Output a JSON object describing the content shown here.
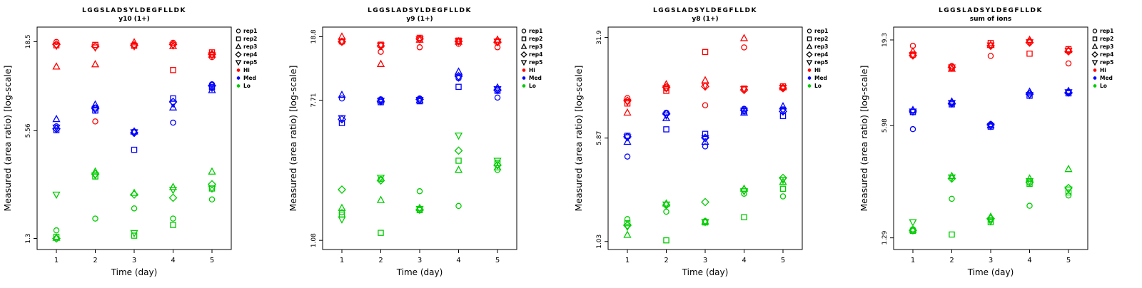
{
  "figure": {
    "peptide": "LGGSLADSYLDEGFLLDK"
  },
  "legend": {
    "reps": [
      {
        "label": "rep1",
        "marker": "circle"
      },
      {
        "label": "rep2",
        "marker": "square"
      },
      {
        "label": "rep3",
        "marker": "triangle-up"
      },
      {
        "label": "rep4",
        "marker": "diamond"
      },
      {
        "label": "rep5",
        "marker": "triangle-down"
      }
    ],
    "levels": [
      {
        "label": "Hi",
        "color": "#FF0000"
      },
      {
        "label": "Med",
        "color": "#0000FF"
      },
      {
        "label": "Lo",
        "color": "#00CC00"
      }
    ]
  },
  "chart_data": [
    {
      "type": "scatter",
      "title": "LGGSLADSYLDEGFLLDK",
      "subtitle": "y10 (1+)",
      "xlabel": "Time (day)",
      "ylabel": "Measured (area ratio) [log-scale]",
      "x_ticks": [
        1,
        2,
        3,
        4,
        5
      ],
      "y_ticks": [
        1.3,
        5.56,
        18.5
      ],
      "y_scale": "log",
      "ylim": [
        1.12,
        22.5
      ],
      "series": [
        {
          "name": "Hi",
          "color": "#FF0000",
          "reps": [
            {
              "marker": "circle",
              "values": [
                18.4,
                6.3,
                17.7,
                18.2,
                15.0
              ]
            },
            {
              "marker": "square",
              "values": [
                17.6,
                17.7,
                17.5,
                12.6,
                16.0
              ]
            },
            {
              "marker": "triangle-up",
              "values": [
                13.2,
                13.6,
                18.3,
                17.4,
                15.5
              ]
            },
            {
              "marker": "diamond",
              "values": [
                17.8,
                17.3,
                17.6,
                17.8,
                15.6
              ]
            },
            {
              "marker": "triangle-down",
              "values": [
                17.5,
                17.1,
                17.4,
                17.6,
                15.4
              ]
            }
          ]
        },
        {
          "name": "Med",
          "color": "#0000FF",
          "reps": [
            {
              "marker": "circle",
              "values": [
                5.9,
                7.6,
                5.5,
                6.2,
                10.4
              ]
            },
            {
              "marker": "square",
              "values": [
                5.6,
                7.3,
                4.3,
                8.6,
                10.0
              ]
            },
            {
              "marker": "triangle-up",
              "values": [
                6.5,
                7.9,
                5.5,
                7.6,
                9.6
              ]
            },
            {
              "marker": "diamond",
              "values": [
                5.7,
                7.5,
                5.4,
                8.2,
                10.2
              ]
            },
            {
              "marker": "triangle-down",
              "values": [
                5.8,
                7.4,
                5.45,
                8.0,
                9.9
              ]
            }
          ]
        },
        {
          "name": "Lo",
          "color": "#00CC00",
          "reps": [
            {
              "marker": "circle",
              "values": [
                1.45,
                1.7,
                1.95,
                1.7,
                2.2
              ]
            },
            {
              "marker": "square",
              "values": [
                1.33,
                3.0,
                1.35,
                1.56,
                2.55
              ]
            },
            {
              "marker": "triangle-up",
              "values": [
                1.31,
                3.2,
                2.4,
                2.6,
                3.2
              ]
            },
            {
              "marker": "diamond",
              "values": [
                1.3,
                3.1,
                2.35,
                2.25,
                2.7
              ]
            },
            {
              "marker": "triangle-down",
              "values": [
                2.35,
                3.05,
                1.4,
                2.5,
                2.55
              ]
            }
          ]
        }
      ]
    },
    {
      "type": "scatter",
      "title": "LGGSLADSYLDEGFLLDK",
      "subtitle": "y9 (1+)",
      "xlabel": "Time (day)",
      "ylabel": "Measured (area ratio) [log-scale]",
      "x_ticks": [
        1,
        2,
        3,
        4,
        5
      ],
      "y_ticks": [
        1.08,
        7.71,
        18.8
      ],
      "y_scale": "log",
      "ylim": [
        0.95,
        21.5
      ],
      "series": [
        {
          "name": "Hi",
          "color": "#FF0000",
          "reps": [
            {
              "marker": "circle",
              "values": [
                17.4,
                15.2,
                16.2,
                17.0,
                16.2
              ]
            },
            {
              "marker": "square",
              "values": [
                17.6,
                16.8,
                18.5,
                17.8,
                17.6
              ]
            },
            {
              "marker": "triangle-up",
              "values": [
                18.8,
                12.8,
                18.0,
                17.5,
                18.0
              ]
            },
            {
              "marker": "diamond",
              "values": [
                17.5,
                16.5,
                18.2,
                17.6,
                17.4
              ]
            },
            {
              "marker": "triangle-down",
              "values": [
                17.55,
                16.6,
                18.1,
                17.65,
                17.5
              ]
            }
          ]
        },
        {
          "name": "Med",
          "color": "#0000FF",
          "reps": [
            {
              "marker": "circle",
              "values": [
                7.9,
                7.8,
                7.9,
                10.5,
                8.0
              ]
            },
            {
              "marker": "square",
              "values": [
                5.6,
                7.5,
                7.6,
                9.3,
                8.8
              ]
            },
            {
              "marker": "triangle-up",
              "values": [
                8.3,
                7.7,
                7.7,
                11.5,
                9.2
              ]
            },
            {
              "marker": "diamond",
              "values": [
                5.9,
                7.6,
                7.8,
                10.8,
                8.9
              ]
            },
            {
              "marker": "triangle-down",
              "values": [
                6.0,
                7.65,
                7.75,
                10.6,
                9.0
              ]
            }
          ]
        },
        {
          "name": "Lo",
          "color": "#00CC00",
          "reps": [
            {
              "marker": "circle",
              "values": [
                1.6,
                2.55,
                2.15,
                1.75,
                2.9
              ]
            },
            {
              "marker": "square",
              "values": [
                1.55,
                1.2,
                1.65,
                3.3,
                3.2
              ]
            },
            {
              "marker": "triangle-up",
              "values": [
                1.7,
                1.9,
                1.7,
                2.9,
                3.0
              ]
            },
            {
              "marker": "diamond",
              "values": [
                2.2,
                2.5,
                1.66,
                3.8,
                3.1
              ]
            },
            {
              "marker": "triangle-down",
              "values": [
                1.45,
                2.6,
                1.68,
                4.7,
                3.3
              ]
            }
          ]
        }
      ]
    },
    {
      "type": "scatter",
      "title": "LGGSLADSYLDEGFLLDK",
      "subtitle": "y8 (1+)",
      "xlabel": "Time (day)",
      "ylabel": "Measured (area ratio) [log-scale]",
      "x_ticks": [
        1,
        2,
        3,
        4,
        5
      ],
      "y_ticks": [
        1.03,
        5.87,
        31.9
      ],
      "y_scale": "log",
      "ylim": [
        0.9,
        38.0
      ],
      "series": [
        {
          "name": "Hi",
          "color": "#FF0000",
          "reps": [
            {
              "marker": "circle",
              "values": [
                11.5,
                13.5,
                10.2,
                27.0,
                13.5
              ]
            },
            {
              "marker": "square",
              "values": [
                10.5,
                13.0,
                25.0,
                13.5,
                14.0
              ]
            },
            {
              "marker": "triangle-up",
              "values": [
                9.0,
                14.5,
                15.5,
                31.5,
                13.8
              ]
            },
            {
              "marker": "diamond",
              "values": [
                11.0,
                13.8,
                14.0,
                13.2,
                13.6
              ]
            },
            {
              "marker": "triangle-down",
              "values": [
                10.8,
                13.6,
                14.2,
                13.4,
                13.7
              ]
            }
          ]
        },
        {
          "name": "Med",
          "color": "#0000FF",
          "reps": [
            {
              "marker": "circle",
              "values": [
                4.3,
                9.0,
                5.1,
                9.6,
                9.5
              ]
            },
            {
              "marker": "square",
              "values": [
                6.1,
                6.8,
                6.3,
                9.2,
                8.5
              ]
            },
            {
              "marker": "triangle-up",
              "values": [
                5.5,
                8.2,
                5.5,
                9.0,
                10.0
              ]
            },
            {
              "marker": "diamond",
              "values": [
                6.0,
                8.8,
                5.9,
                9.4,
                9.2
              ]
            },
            {
              "marker": "triangle-down",
              "values": [
                5.95,
                8.6,
                5.85,
                9.3,
                9.3
              ]
            }
          ]
        },
        {
          "name": "Lo",
          "color": "#00CC00",
          "reps": [
            {
              "marker": "circle",
              "values": [
                1.5,
                1.7,
                1.45,
                2.3,
                2.2
              ]
            },
            {
              "marker": "square",
              "values": [
                1.4,
                1.05,
                1.42,
                1.55,
                2.5
              ]
            },
            {
              "marker": "triangle-up",
              "values": [
                1.15,
                1.95,
                1.44,
                2.5,
                2.8
              ]
            },
            {
              "marker": "diamond",
              "values": [
                1.35,
                1.9,
                2.0,
                2.45,
                3.0
              ]
            },
            {
              "marker": "triangle-down",
              "values": [
                1.32,
                1.92,
                1.43,
                2.4,
                2.9
              ]
            }
          ]
        }
      ]
    },
    {
      "type": "scatter",
      "title": "LGGSLADSYLDEGFLLDK",
      "subtitle": "sum of ions",
      "xlabel": "Time (day)",
      "ylabel": "Measured (area ratio) [log-scale]",
      "x_ticks": [
        1,
        2,
        3,
        4,
        5
      ],
      "y_ticks": [
        1.29,
        5.98,
        19.3
      ],
      "y_scale": "log",
      "ylim": [
        1.1,
        23.0
      ],
      "series": [
        {
          "name": "Hi",
          "color": "#FF0000",
          "reps": [
            {
              "marker": "circle",
              "values": [
                17.8,
                13.5,
                15.5,
                19.0,
                14.0
              ]
            },
            {
              "marker": "square",
              "values": [
                15.8,
                13.2,
                18.5,
                16.0,
                17.0
              ]
            },
            {
              "marker": "triangle-up",
              "values": [
                16.5,
                13.0,
                18.0,
                19.3,
                16.8
              ]
            },
            {
              "marker": "diamond",
              "values": [
                15.6,
                13.3,
                17.8,
                18.6,
                16.5
              ]
            },
            {
              "marker": "triangle-down",
              "values": [
                15.7,
                13.25,
                17.9,
                18.7,
                16.6
              ]
            }
          ]
        },
        {
          "name": "Med",
          "color": "#0000FF",
          "reps": [
            {
              "marker": "circle",
              "values": [
                5.7,
                8.2,
                6.1,
                9.3,
                9.5
              ]
            },
            {
              "marker": "square",
              "values": [
                7.2,
                8.0,
                5.9,
                9.0,
                9.3
              ]
            },
            {
              "marker": "triangle-up",
              "values": [
                7.4,
                8.3,
                6.0,
                9.5,
                9.6
              ]
            },
            {
              "marker": "diamond",
              "values": [
                7.3,
                8.1,
                6.05,
                9.2,
                9.4
              ]
            },
            {
              "marker": "triangle-down",
              "values": [
                7.25,
                8.15,
                5.95,
                9.1,
                9.45
              ]
            }
          ]
        },
        {
          "name": "Lo",
          "color": "#00CC00",
          "reps": [
            {
              "marker": "circle",
              "values": [
                1.45,
                2.2,
                1.65,
                2.0,
                2.3
              ]
            },
            {
              "marker": "square",
              "values": [
                1.42,
                1.35,
                1.6,
                2.7,
                2.4
              ]
            },
            {
              "marker": "triangle-up",
              "values": [
                1.44,
                3.0,
                1.72,
                2.9,
                3.3
              ]
            },
            {
              "marker": "diamond",
              "values": [
                1.43,
                2.9,
                1.68,
                2.75,
                2.55
              ]
            },
            {
              "marker": "triangle-down",
              "values": [
                1.6,
                2.95,
                1.62,
                2.8,
                2.5
              ]
            }
          ]
        }
      ]
    }
  ]
}
